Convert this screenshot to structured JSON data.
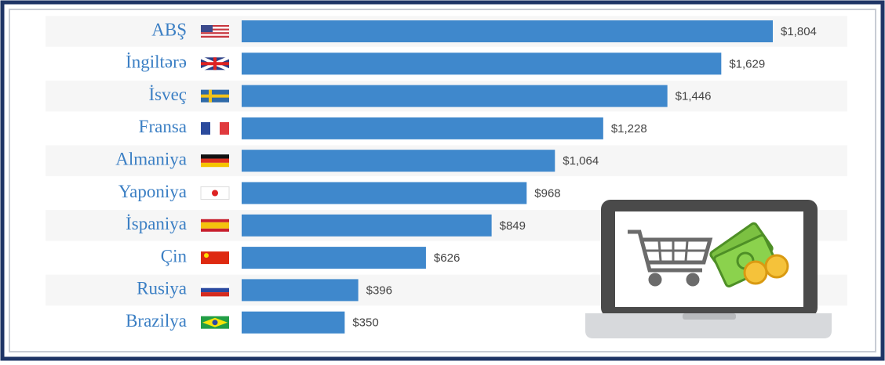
{
  "chart_data": {
    "type": "bar",
    "orientation": "horizontal",
    "categories": [
      "ABŞ",
      "İngiltərə",
      "İsveç",
      "Fransa",
      "Almaniya",
      "Yaponiya",
      "İspaniya",
      "Çin",
      "Rusiya",
      "Brazilya"
    ],
    "values": [
      1804,
      1629,
      1446,
      1228,
      1064,
      968,
      849,
      626,
      396,
      350
    ],
    "value_labels": [
      "$1,804",
      "$1,629",
      "$1,446",
      "$1,228",
      "$1,064",
      "$968",
      "$849",
      "$626",
      "$396",
      "$350"
    ],
    "color": "#3f88cc"
  }
}
